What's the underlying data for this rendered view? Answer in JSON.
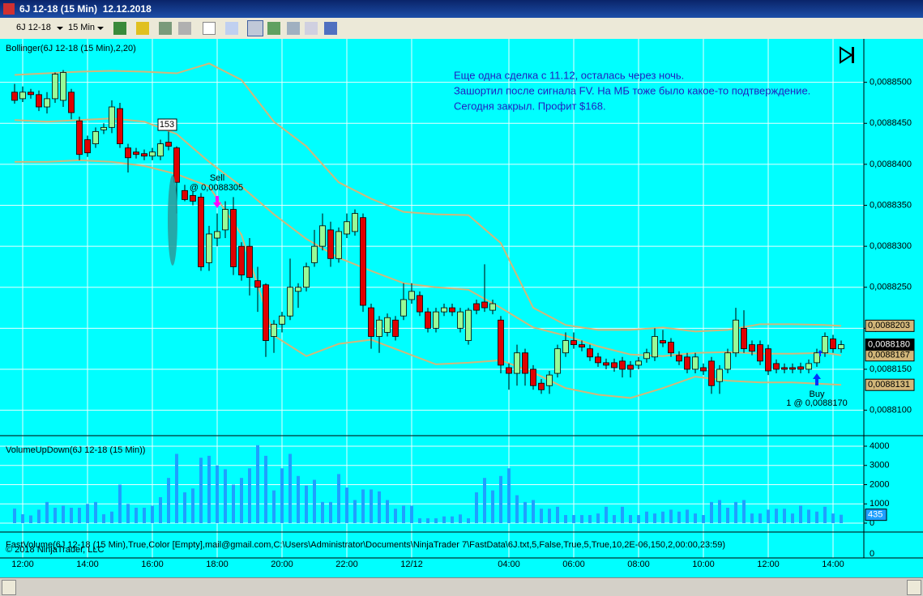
{
  "window": {
    "title": "6J 12-18 (15 Min)  12.12.2018"
  },
  "toolbar": {
    "instrument": "6J 12-18",
    "period": "15 Min"
  },
  "note": [
    "Еще одна сделка с 11.12, осталась через ночь.",
    "Зашортил после сигнала FV. На МБ тоже было какое-то подтверждение.",
    "Сегодня закрыл. Профит $168."
  ],
  "copyright": "© 2018 NinjaTrader, LLC",
  "chart_data": [
    {
      "type": "candlestick",
      "title": "Bollinger(6J 12-18 (15 Min),2,20)",
      "categories": [
        null,
        "12:00",
        null,
        null,
        null,
        null,
        null,
        null,
        null,
        "14:00",
        null,
        null,
        null,
        null,
        null,
        null,
        null,
        "16:00",
        null,
        null,
        null,
        null,
        null,
        null,
        null,
        "18:00",
        null,
        null,
        null,
        null,
        null,
        null,
        null,
        "20:00",
        null,
        null,
        null,
        null,
        null,
        null,
        null,
        "22:00",
        null,
        null,
        null,
        null,
        null,
        null,
        null,
        "12/12",
        null,
        null,
        null,
        null,
        null,
        null,
        null,
        null,
        null,
        null,
        null,
        "04:00",
        null,
        null,
        null,
        null,
        null,
        null,
        null,
        "06:00",
        null,
        null,
        null,
        null,
        null,
        null,
        null,
        "08:00",
        null,
        null,
        null,
        null,
        null,
        null,
        null,
        "10:00",
        null,
        null,
        null,
        null,
        null,
        null,
        null,
        "12:00",
        null,
        null,
        null,
        null,
        null,
        null,
        null,
        "14:00",
        null
      ],
      "open": [
        0.0088488,
        0.008848,
        0.0088488,
        0.0088485,
        0.008847,
        0.008848,
        0.0088478,
        0.0088488,
        0.0088453,
        0.008843,
        0.0088425,
        0.0088442,
        0.0088445,
        0.0088468,
        0.008842,
        0.0088415,
        0.0088413,
        0.008841,
        0.008841,
        0.0088427,
        0.008842,
        0.0088368,
        0.0088362,
        0.008836,
        0.008828,
        0.008831,
        0.008832,
        0.0088345,
        0.00883,
        0.00883,
        0.0088258,
        0.0088253,
        0.008819,
        0.0088205,
        0.0088215,
        0.0088245,
        0.008825,
        0.008828,
        0.00883,
        0.008832,
        0.0088285,
        0.0088315,
        0.0088318,
        0.0088335,
        0.0088225,
        0.008819,
        0.0088195,
        0.008821,
        0.0088215,
        0.0088235,
        0.008824,
        0.008822,
        0.00882,
        0.008822,
        0.0088225,
        0.00882,
        0.0088185,
        0.008823,
        0.0088232,
        0.0088222,
        0.008821,
        0.0088152,
        0.0088145,
        0.008817,
        0.008815,
        0.0088133,
        0.008813,
        0.0088145,
        0.008817,
        0.0088185,
        0.008818,
        0.0088175,
        0.0088165,
        0.0088158,
        0.0088158,
        0.008816,
        0.0088155,
        0.0088155,
        0.0088163,
        0.0088165,
        0.0088185,
        0.0088183,
        0.0088167,
        0.0088165,
        0.008815,
        0.0088152,
        0.008816,
        0.0088135,
        0.008815,
        0.008817,
        0.00882,
        0.008818,
        0.008818,
        0.0088175,
        0.0088157,
        0.0088152,
        0.0088152,
        0.0088153,
        0.008815,
        0.0088158,
        0.008817,
        0.0088187,
        0.0088175
      ],
      "high": [
        0.0088498,
        0.0088495,
        0.0088492,
        0.008849,
        0.0088488,
        0.0088512,
        0.0088515,
        0.0088492,
        0.0088458,
        0.0088435,
        0.0088445,
        0.008845,
        0.0088478,
        0.0088475,
        0.0088425,
        0.008842,
        0.0088418,
        0.008842,
        0.008843,
        0.008844,
        0.0088422,
        0.0088375,
        0.0088367,
        0.0088365,
        0.0088325,
        0.008834,
        0.0088355,
        0.008836,
        0.0088305,
        0.008831,
        0.0088275,
        0.0088255,
        0.008821,
        0.008822,
        0.0088285,
        0.0088255,
        0.008828,
        0.008832,
        0.008834,
        0.008833,
        0.0088323,
        0.008834,
        0.0088345,
        0.008834,
        0.008823,
        0.0088215,
        0.0088218,
        0.0088215,
        0.0088255,
        0.0088255,
        0.0088245,
        0.0088225,
        0.0088225,
        0.008823,
        0.008823,
        0.0088225,
        0.0088225,
        0.0088235,
        0.0088278,
        0.0088235,
        0.0088215,
        0.0088157,
        0.008818,
        0.0088175,
        0.0088155,
        0.0088138,
        0.0088148,
        0.008818,
        0.0088195,
        0.0088195,
        0.0088185,
        0.008818,
        0.008817,
        0.0088163,
        0.0088163,
        0.0088165,
        0.008816,
        0.0088165,
        0.0088175,
        0.00882,
        0.0088198,
        0.0088188,
        0.0088172,
        0.008817,
        0.008817,
        0.0088157,
        0.0088165,
        0.0088155,
        0.0088175,
        0.0088225,
        0.0088222,
        0.0088185,
        0.0088185,
        0.008818,
        0.0088162,
        0.0088157,
        0.0088157,
        0.0088158,
        0.0088162,
        0.0088175,
        0.0088195,
        0.0088192,
        0.0088185
      ],
      "low": [
        0.0088474,
        0.0088476,
        0.008848,
        0.0088465,
        0.0088462,
        0.0088475,
        0.008847,
        0.0088455,
        0.0088405,
        0.0088409,
        0.008842,
        0.0088437,
        0.0088438,
        0.008842,
        0.008839,
        0.0088407,
        0.0088405,
        0.0088405,
        0.0088405,
        0.0088417,
        0.008834,
        0.0088355,
        0.008835,
        0.008827,
        0.008827,
        0.00883,
        0.008831,
        0.0088265,
        0.0088258,
        0.008824,
        0.008822,
        0.0088165,
        0.008817,
        0.0088195,
        0.008821,
        0.0088225,
        0.0088245,
        0.0088275,
        0.0088295,
        0.0088275,
        0.008828,
        0.008831,
        0.0088313,
        0.008822,
        0.0088175,
        0.008817,
        0.008819,
        0.0088185,
        0.008821,
        0.008823,
        0.0088215,
        0.0088195,
        0.0088195,
        0.0088215,
        0.0088215,
        0.0088195,
        0.008818,
        0.0088217,
        0.008822,
        0.0088217,
        0.0088145,
        0.0088125,
        0.008813,
        0.008813,
        0.0088125,
        0.008812,
        0.008812,
        0.008814,
        0.0088165,
        0.0088175,
        0.0088172,
        0.008816,
        0.0088153,
        0.008815,
        0.0088147,
        0.008814,
        0.008814,
        0.008815,
        0.0088158,
        0.008816,
        0.0088177,
        0.0088165,
        0.0088155,
        0.0088145,
        0.0088145,
        0.0088143,
        0.008812,
        0.008812,
        0.0088145,
        0.0088165,
        0.008817,
        0.0088167,
        0.0088155,
        0.0088143,
        0.0088145,
        0.0088145,
        0.0088145,
        0.0088145,
        0.0088145,
        0.0088153,
        0.0088165,
        0.008817,
        0.008817
      ],
      "close": [
        0.0088478,
        0.0088488,
        0.0088485,
        0.008847,
        0.008848,
        0.008851,
        0.0088512,
        0.0088463,
        0.0088412,
        0.0088414,
        0.008844,
        0.0088445,
        0.008847,
        0.0088425,
        0.0088408,
        0.0088412,
        0.008841,
        0.0088415,
        0.0088425,
        0.0088422,
        0.0088378,
        0.0088357,
        0.0088355,
        0.0088275,
        0.0088315,
        0.0088318,
        0.0088345,
        0.0088275,
        0.0088265,
        0.0088262,
        0.008825,
        0.0088185,
        0.0088205,
        0.0088215,
        0.008825,
        0.008825,
        0.0088275,
        0.00883,
        0.0088325,
        0.0088285,
        0.0088318,
        0.008833,
        0.008834,
        0.0088228,
        0.008819,
        0.008821,
        0.0088213,
        0.008819,
        0.0088235,
        0.0088245,
        0.008822,
        0.00882,
        0.008822,
        0.0088225,
        0.008822,
        0.008822,
        0.0088222,
        0.0088222,
        0.0088225,
        0.008823,
        0.0088155,
        0.0088145,
        0.008817,
        0.0088145,
        0.008813,
        0.0088125,
        0.0088143,
        0.0088175,
        0.0088185,
        0.008818,
        0.0088177,
        0.0088165,
        0.0088158,
        0.0088155,
        0.0088152,
        0.008815,
        0.008815,
        0.008816,
        0.008817,
        0.008819,
        0.0088182,
        0.008817,
        0.008816,
        0.008815,
        0.0088165,
        0.0088148,
        0.008813,
        0.008815,
        0.008817,
        0.008821,
        0.0088175,
        0.0088172,
        0.008816,
        0.0088148,
        0.008815,
        0.008815,
        0.008815,
        0.008815,
        0.0088157,
        0.008817,
        0.008819,
        0.0088175,
        0.008818
      ],
      "last_close_label": "0,0088180",
      "up_color": "#98fb98",
      "down_color": "#e00000",
      "bands": [
        {
          "color": "#d2b77a",
          "x": [
            0,
            4,
            8,
            12,
            16,
            20,
            24,
            28,
            32,
            36,
            40,
            44,
            48,
            52,
            56,
            60,
            64,
            68,
            72,
            76,
            80,
            84,
            88,
            92,
            96,
            100,
            102
          ],
          "values": [
            0.0088509,
            0.0088511,
            0.0088513,
            0.0088514,
            0.0088513,
            0.0088511,
            0.0088523,
            0.0088503,
            0.0088452,
            0.0088422,
            0.0088378,
            0.0088358,
            0.0088342,
            0.0088339,
            0.0088338,
            0.0088304,
            0.0088225,
            0.0088204,
            0.0088198,
            0.0088198,
            0.0088201,
            0.0088196,
            0.0088198,
            0.0088205,
            0.0088205,
            0.0088204,
            0.0088203
          ],
          "value_label": "0,0088203"
        },
        {
          "color": "#d2b77a",
          "x": [
            0,
            4,
            8,
            12,
            16,
            20,
            24,
            28,
            32,
            36,
            40,
            44,
            48,
            52,
            56,
            60,
            64,
            68,
            72,
            76,
            80,
            84,
            88,
            92,
            96,
            100,
            102
          ],
          "values": [
            0.0088454,
            0.0088452,
            0.0088454,
            0.0088456,
            0.0088452,
            0.0088437,
            0.0088403,
            0.0088373,
            0.0088339,
            0.0088309,
            0.0088286,
            0.008827,
            0.0088255,
            0.008825,
            0.0088247,
            0.0088225,
            0.0088201,
            0.0088191,
            0.0088178,
            0.0088168,
            0.0088166,
            0.008817,
            0.0088171,
            0.0088169,
            0.0088169,
            0.008817,
            0.0088167
          ],
          "value_label": "0,0088167"
        },
        {
          "color": "#d2b77a",
          "x": [
            0,
            4,
            8,
            12,
            16,
            20,
            24,
            28,
            32,
            36,
            40,
            44,
            48,
            52,
            56,
            60,
            64,
            68,
            72,
            76,
            80,
            84,
            88,
            92,
            96,
            100,
            102
          ],
          "values": [
            0.0088403,
            0.0088403,
            0.0088405,
            0.0088403,
            0.0088398,
            0.0088388,
            0.0088373,
            0.0088314,
            0.0088191,
            0.0088166,
            0.0088181,
            0.0088186,
            0.0088171,
            0.0088156,
            0.0088158,
            0.0088161,
            0.0088146,
            0.0088127,
            0.0088119,
            0.0088115,
            0.0088127,
            0.0088141,
            0.0088136,
            0.0088134,
            0.0088134,
            0.0088132,
            0.0088131
          ],
          "value_label": "0,0088131"
        }
      ],
      "ylim": [
        0.0088069,
        0.0088553
      ],
      "yticks": [
        {
          "value": 0.00881,
          "label": "0,0088100"
        },
        {
          "value": 0.008815,
          "label": "0,0088150"
        },
        {
          "value": 0.00882,
          "label": "0,0088200"
        },
        {
          "value": 0.008825,
          "label": "0,0088250"
        },
        {
          "value": 0.00883,
          "label": "0,0088300"
        },
        {
          "value": 0.008835,
          "label": "0,0088350"
        },
        {
          "value": 0.00884,
          "label": "0,0088400"
        },
        {
          "value": 0.008845,
          "label": "0,0088450"
        },
        {
          "value": 0.00885,
          "label": "0,0088500"
        }
      ],
      "annotations": [
        "153",
        "Sell",
        "@ 0,0088305",
        "Buy",
        "1 @ 0,0088170"
      ]
    },
    {
      "type": "bar",
      "title": "VolumeUpDown(6J 12-18 (15 Min))",
      "color": "#1ea0ff",
      "values": [
        760,
        460,
        400,
        700,
        1100,
        800,
        900,
        800,
        800,
        1000,
        1100,
        460,
        600,
        2000,
        1000,
        800,
        800,
        900,
        1350,
        2350,
        3600,
        1600,
        1800,
        3400,
        3500,
        3000,
        2800,
        2000,
        2350,
        2850,
        4050,
        3500,
        1700,
        2850,
        3600,
        2450,
        1950,
        2250,
        1100,
        1100,
        2550,
        1850,
        1200,
        1750,
        1750,
        1650,
        1200,
        750,
        900,
        900,
        250,
        250,
        250,
        350,
        350,
        450,
        250,
        1600,
        2350,
        1700,
        2450,
        2850,
        1450,
        1100,
        1200,
        750,
        750,
        850,
        420,
        420,
        420,
        420,
        500,
        850,
        420,
        850,
        420,
        420,
        600,
        500,
        600,
        700,
        600,
        700,
        500,
        420,
        1100,
        1200,
        800,
        1100,
        1200,
        500,
        500,
        700,
        750,
        750,
        500,
        900,
        700,
        600,
        850,
        500,
        435
      ],
      "ylim": [
        -463,
        4547
      ],
      "yticks": [
        0,
        1000,
        2000,
        3000,
        4000
      ]
    },
    {
      "type": "indicator",
      "title": "FastVolume(6J 12-18 (15 Min),True,Color [Empty],mail@gmail.com,C:\\Users\\Administrator\\Documents\\NinjaTrader 7\\FastData\\6J.txt,5,False,True,5,True,10,2E-06,150,2,00:00,23:59)",
      "yticks": [
        0
      ]
    }
  ]
}
